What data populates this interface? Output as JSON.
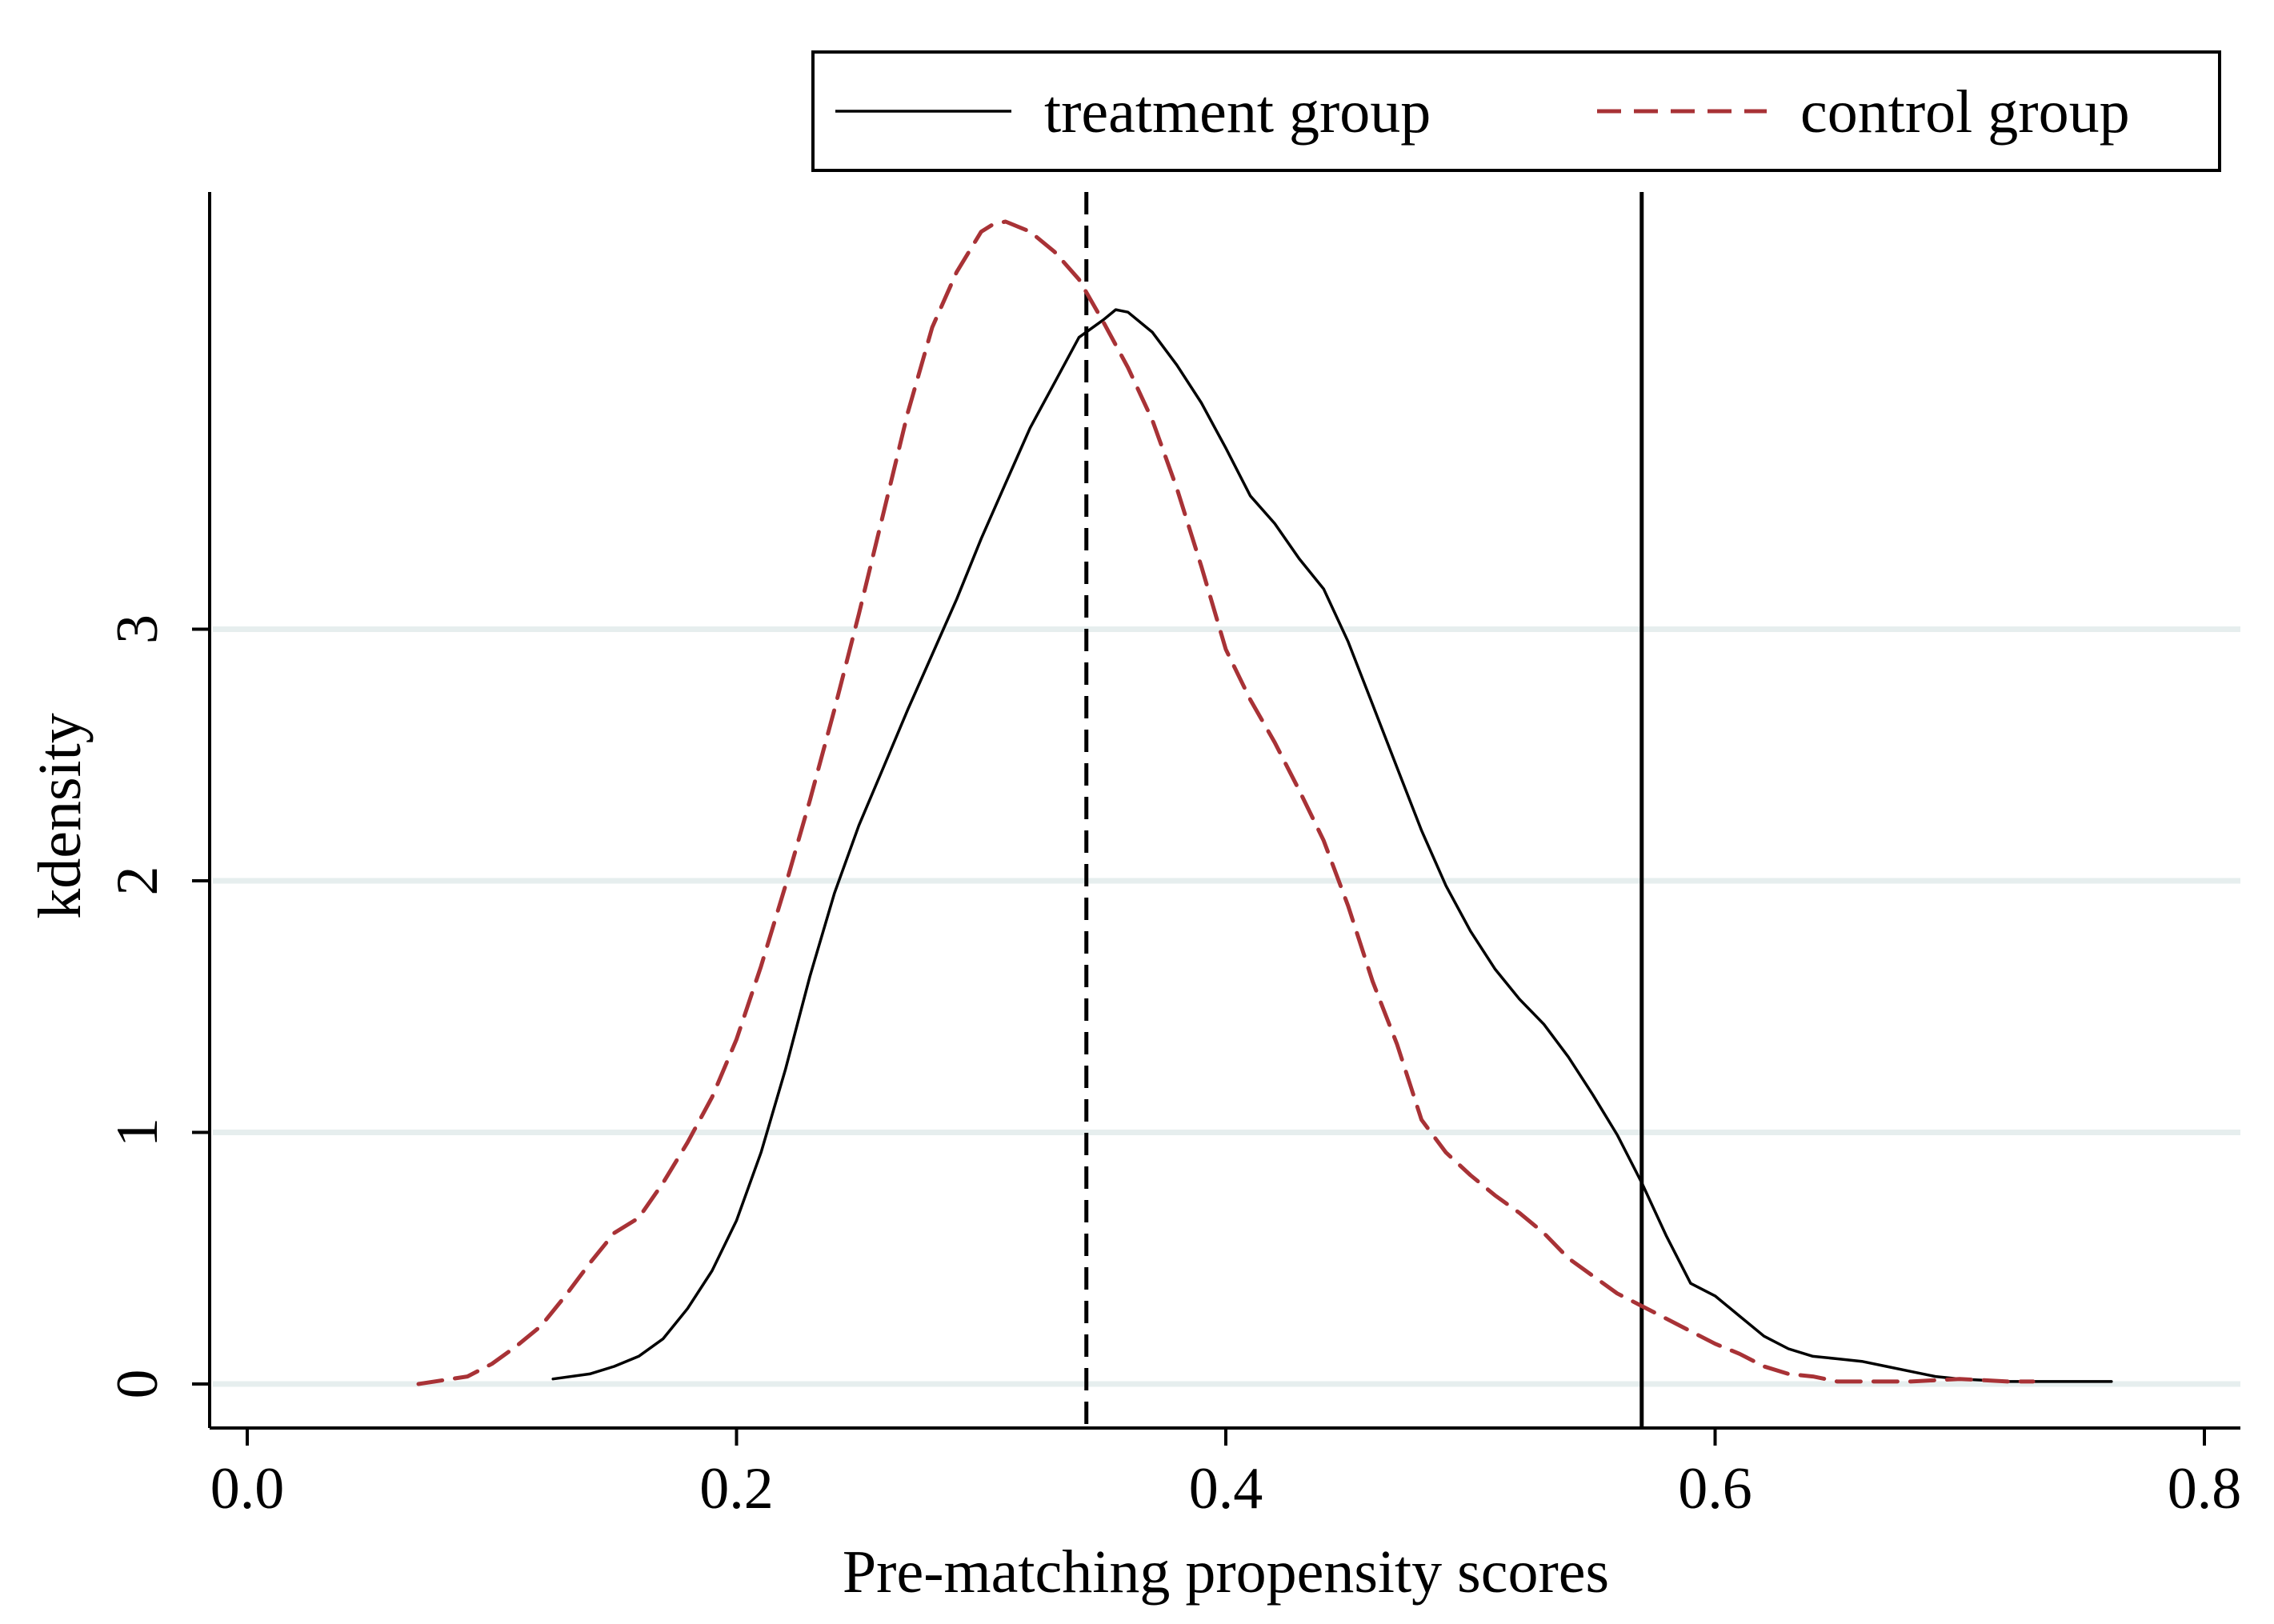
{
  "chart_data": {
    "type": "line",
    "title": "",
    "xlabel": "Pre-matching propensity scores",
    "ylabel": "kdensity",
    "xlim": [
      -0.02,
      0.82
    ],
    "ylim": [
      -0.15,
      4.75
    ],
    "x_ticks": [
      {
        "value": 0.0,
        "label": "0.0"
      },
      {
        "value": 0.2,
        "label": "0.2"
      },
      {
        "value": 0.4,
        "label": "0.4"
      },
      {
        "value": 0.6,
        "label": "0.6"
      },
      {
        "value": 0.8,
        "label": "0.8"
      }
    ],
    "y_ticks": [
      {
        "value": 0,
        "label": "0"
      },
      {
        "value": 1,
        "label": "1"
      },
      {
        "value": 2,
        "label": "2"
      },
      {
        "value": 3,
        "label": "3"
      }
    ],
    "grid": "horizontal",
    "legend": "top-right",
    "reference_lines": [
      {
        "x": 0.343,
        "style": "dashed",
        "color": "#000000"
      },
      {
        "x": 0.57,
        "style": "solid",
        "color": "#000000"
      }
    ],
    "series": [
      {
        "name": "treatment group",
        "style": "solid",
        "color": "#000000",
        "points": [
          [
            0.125,
            0.02
          ],
          [
            0.14,
            0.04
          ],
          [
            0.15,
            0.07
          ],
          [
            0.16,
            0.11
          ],
          [
            0.17,
            0.18
          ],
          [
            0.18,
            0.3
          ],
          [
            0.19,
            0.45
          ],
          [
            0.2,
            0.65
          ],
          [
            0.21,
            0.92
          ],
          [
            0.22,
            1.25
          ],
          [
            0.23,
            1.62
          ],
          [
            0.24,
            1.95
          ],
          [
            0.25,
            2.22
          ],
          [
            0.26,
            2.45
          ],
          [
            0.27,
            2.68
          ],
          [
            0.28,
            2.9
          ],
          [
            0.29,
            3.12
          ],
          [
            0.3,
            3.36
          ],
          [
            0.31,
            3.58
          ],
          [
            0.32,
            3.8
          ],
          [
            0.33,
            3.98
          ],
          [
            0.34,
            4.16
          ],
          [
            0.35,
            4.23
          ],
          [
            0.355,
            4.27
          ],
          [
            0.36,
            4.26
          ],
          [
            0.37,
            4.18
          ],
          [
            0.38,
            4.05
          ],
          [
            0.39,
            3.9
          ],
          [
            0.4,
            3.72
          ],
          [
            0.41,
            3.53
          ],
          [
            0.42,
            3.42
          ],
          [
            0.43,
            3.28
          ],
          [
            0.44,
            3.16
          ],
          [
            0.45,
            2.95
          ],
          [
            0.46,
            2.7
          ],
          [
            0.47,
            2.45
          ],
          [
            0.48,
            2.2
          ],
          [
            0.49,
            1.98
          ],
          [
            0.5,
            1.8
          ],
          [
            0.51,
            1.65
          ],
          [
            0.52,
            1.53
          ],
          [
            0.53,
            1.43
          ],
          [
            0.54,
            1.3
          ],
          [
            0.55,
            1.15
          ],
          [
            0.56,
            0.99
          ],
          [
            0.57,
            0.8
          ],
          [
            0.58,
            0.59
          ],
          [
            0.59,
            0.4
          ],
          [
            0.6,
            0.35
          ],
          [
            0.61,
            0.27
          ],
          [
            0.62,
            0.19
          ],
          [
            0.63,
            0.14
          ],
          [
            0.64,
            0.11
          ],
          [
            0.65,
            0.1
          ],
          [
            0.66,
            0.09
          ],
          [
            0.67,
            0.07
          ],
          [
            0.68,
            0.05
          ],
          [
            0.69,
            0.03
          ],
          [
            0.7,
            0.02
          ],
          [
            0.72,
            0.01
          ],
          [
            0.74,
            0.01
          ],
          [
            0.762,
            0.01
          ]
        ]
      },
      {
        "name": "control group",
        "style": "dashed",
        "color": "#a83236",
        "points": [
          [
            0.07,
            0.0
          ],
          [
            0.09,
            0.03
          ],
          [
            0.1,
            0.08
          ],
          [
            0.11,
            0.15
          ],
          [
            0.12,
            0.23
          ],
          [
            0.13,
            0.35
          ],
          [
            0.14,
            0.48
          ],
          [
            0.15,
            0.6
          ],
          [
            0.16,
            0.66
          ],
          [
            0.17,
            0.8
          ],
          [
            0.18,
            0.96
          ],
          [
            0.19,
            1.14
          ],
          [
            0.2,
            1.37
          ],
          [
            0.21,
            1.66
          ],
          [
            0.22,
            1.98
          ],
          [
            0.23,
            2.32
          ],
          [
            0.24,
            2.68
          ],
          [
            0.25,
            3.06
          ],
          [
            0.26,
            3.46
          ],
          [
            0.27,
            3.86
          ],
          [
            0.28,
            4.2
          ],
          [
            0.29,
            4.42
          ],
          [
            0.3,
            4.58
          ],
          [
            0.305,
            4.61
          ],
          [
            0.31,
            4.62
          ],
          [
            0.32,
            4.58
          ],
          [
            0.33,
            4.5
          ],
          [
            0.34,
            4.39
          ],
          [
            0.35,
            4.22
          ],
          [
            0.36,
            4.04
          ],
          [
            0.37,
            3.83
          ],
          [
            0.38,
            3.56
          ],
          [
            0.39,
            3.25
          ],
          [
            0.4,
            2.92
          ],
          [
            0.41,
            2.72
          ],
          [
            0.42,
            2.55
          ],
          [
            0.43,
            2.36
          ],
          [
            0.44,
            2.16
          ],
          [
            0.45,
            1.9
          ],
          [
            0.46,
            1.6
          ],
          [
            0.47,
            1.35
          ],
          [
            0.48,
            1.05
          ],
          [
            0.49,
            0.92
          ],
          [
            0.5,
            0.83
          ],
          [
            0.51,
            0.75
          ],
          [
            0.52,
            0.68
          ],
          [
            0.53,
            0.6
          ],
          [
            0.54,
            0.5
          ],
          [
            0.55,
            0.43
          ],
          [
            0.56,
            0.36
          ],
          [
            0.57,
            0.31
          ],
          [
            0.58,
            0.26
          ],
          [
            0.59,
            0.21
          ],
          [
            0.6,
            0.16
          ],
          [
            0.61,
            0.12
          ],
          [
            0.62,
            0.07
          ],
          [
            0.63,
            0.04
          ],
          [
            0.64,
            0.03
          ],
          [
            0.65,
            0.01
          ],
          [
            0.66,
            0.01
          ],
          [
            0.68,
            0.01
          ],
          [
            0.7,
            0.02
          ],
          [
            0.72,
            0.01
          ],
          [
            0.73,
            0.01
          ]
        ]
      }
    ]
  },
  "colors": {
    "axis": "#000000",
    "grid": "#e6eeee",
    "background": "#ffffff"
  }
}
